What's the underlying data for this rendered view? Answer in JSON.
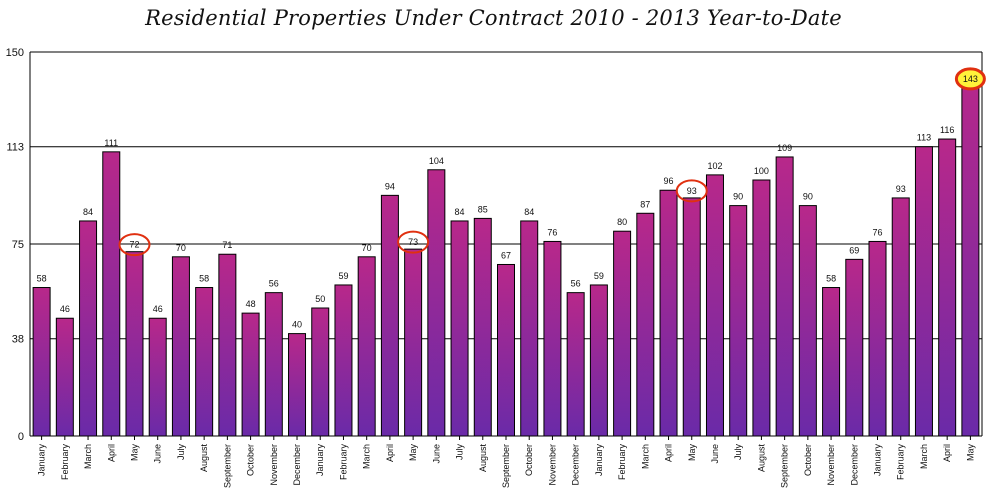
{
  "chart_data": {
    "type": "bar",
    "title": "Residential Properties Under Contract 2010 - 2013 Year-to-Date",
    "xlabel": "",
    "ylabel": "",
    "ylim": [
      0,
      150
    ],
    "yticks": [
      0,
      38,
      75,
      113,
      150
    ],
    "grid": true,
    "legend": "none",
    "categories": [
      "January",
      "February",
      "March",
      "April",
      "May",
      "June",
      "July",
      "August",
      "September",
      "October",
      "November",
      "December",
      "January",
      "February",
      "March",
      "April",
      "May",
      "June",
      "July",
      "August",
      "September",
      "October",
      "November",
      "December",
      "January",
      "February",
      "March",
      "April",
      "May",
      "June",
      "July",
      "August",
      "September",
      "October",
      "November",
      "December",
      "January",
      "February",
      "March",
      "April",
      "May"
    ],
    "values": [
      58,
      46,
      84,
      111,
      72,
      46,
      70,
      58,
      71,
      48,
      56,
      40,
      50,
      59,
      70,
      94,
      73,
      104,
      84,
      85,
      67,
      84,
      76,
      56,
      59,
      80,
      87,
      96,
      93,
      102,
      90,
      100,
      109,
      90,
      58,
      69,
      76,
      93,
      113,
      116,
      143
    ],
    "circled_indices": [
      4,
      16,
      28
    ],
    "highlighted_index": 40,
    "colors": {
      "bar_top": "#b8288a",
      "bar_bottom": "#6a2aa8",
      "circle": "#e03010",
      "highlight_fill": "#fff23a"
    }
  }
}
